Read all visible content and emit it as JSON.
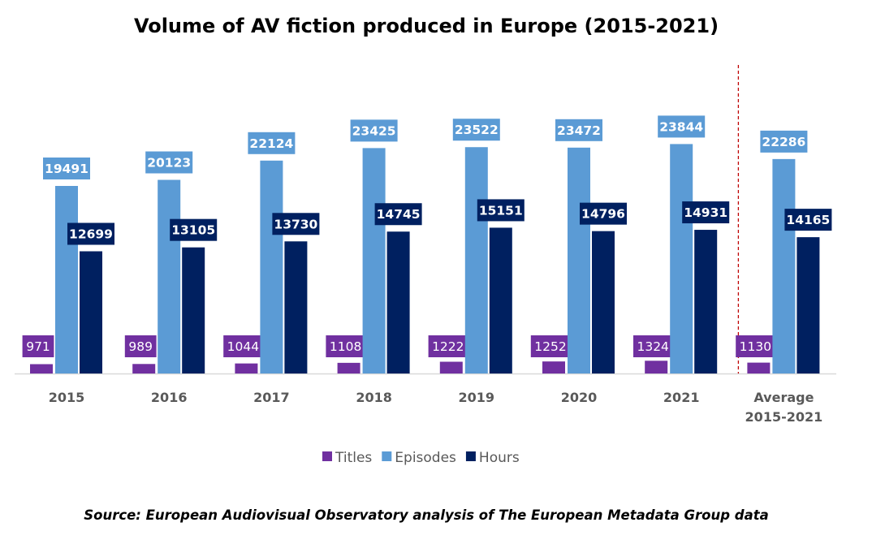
{
  "chart_data": {
    "type": "bar",
    "title": "Volume of AV fiction produced in Europe (2015-2021)",
    "categories": [
      "2015",
      "2016",
      "2017",
      "2018",
      "2019",
      "2020",
      "2021",
      [
        "Average",
        "2015-2021"
      ]
    ],
    "series": [
      {
        "name": "Titles",
        "color": "#7030A0",
        "values": [
          971,
          989,
          1044,
          1108,
          1222,
          1252,
          1324,
          1130
        ]
      },
      {
        "name": "Episodes",
        "color": "#5B9BD5",
        "values": [
          19491,
          20123,
          22124,
          23425,
          23522,
          23472,
          23844,
          22286
        ]
      },
      {
        "name": "Hours",
        "color": "#002060",
        "values": [
          12699,
          13105,
          13730,
          14745,
          15151,
          14796,
          14931,
          14165
        ]
      }
    ],
    "ylim": [
      0,
      27000
    ],
    "grid": false,
    "legend": "bottom",
    "separator_before_category": 7,
    "separator_color": "#C00000",
    "source": "Source: European Audiovisual Observatory analysis of The European Metadata Group data"
  }
}
